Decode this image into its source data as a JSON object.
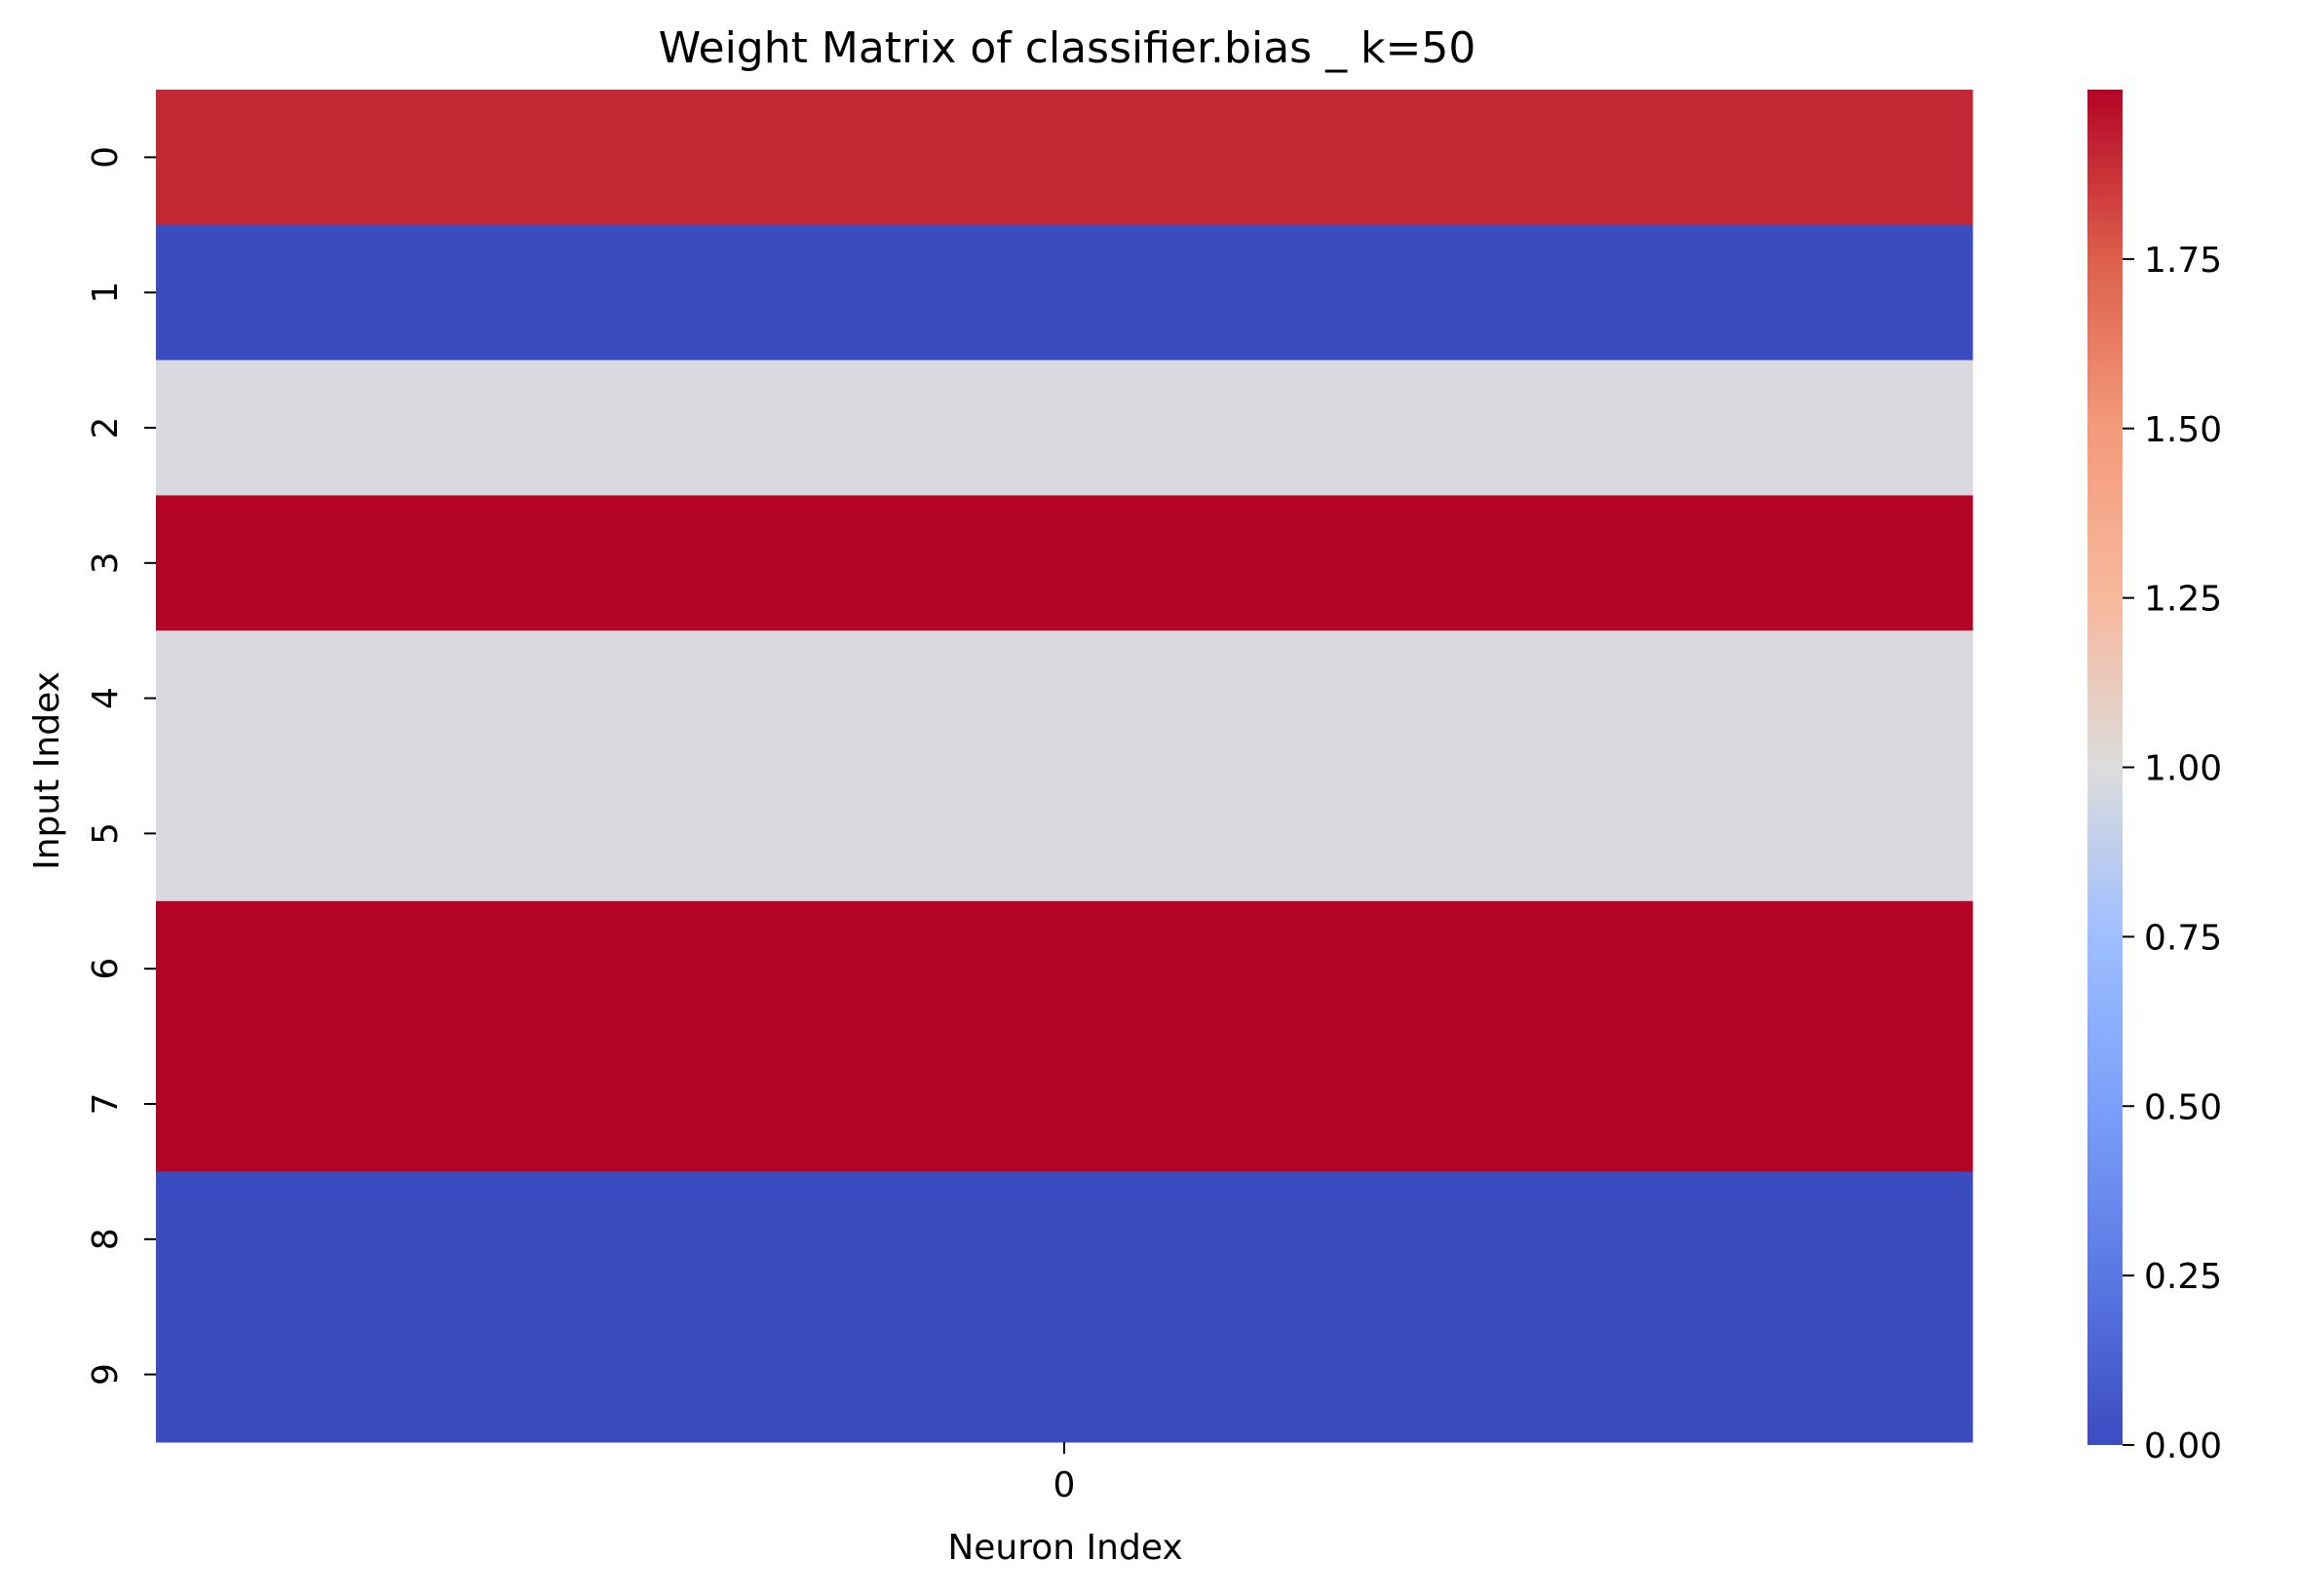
{
  "chart_data": {
    "type": "heatmap",
    "title": "Weight Matrix of classifier.bias _ k=50",
    "xlabel": "Neuron Index",
    "ylabel": "Input Index",
    "x_tick_labels": [
      "0"
    ],
    "y_tick_labels": [
      "0",
      "1",
      "2",
      "3",
      "4",
      "5",
      "6",
      "7",
      "8",
      "9"
    ],
    "values": [
      [
        1.9
      ],
      [
        0.0
      ],
      [
        0.98
      ],
      [
        2.0
      ],
      [
        0.98
      ],
      [
        0.98
      ],
      [
        2.0
      ],
      [
        2.0
      ],
      [
        0.0
      ],
      [
        0.0
      ]
    ],
    "colormap": "coolwarm",
    "vmin": 0.0,
    "vmax": 2.0,
    "colorbar": {
      "ticks": [
        0.0,
        0.25,
        0.5,
        0.75,
        1.0,
        1.25,
        1.5,
        1.75
      ],
      "tick_labels": [
        "0.00",
        "0.25",
        "0.50",
        "0.75",
        "1.00",
        "1.25",
        "1.50",
        "1.75"
      ]
    }
  }
}
